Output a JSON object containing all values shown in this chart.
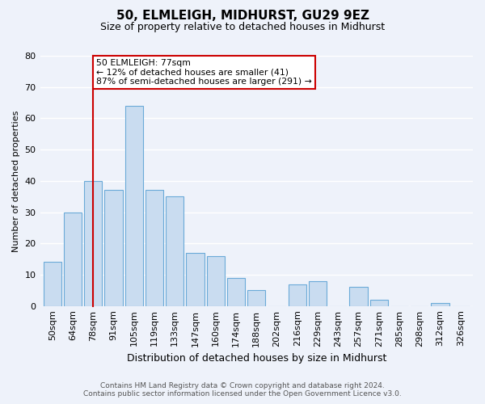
{
  "title": "50, ELMLEIGH, MIDHURST, GU29 9EZ",
  "subtitle": "Size of property relative to detached houses in Midhurst",
  "xlabel": "Distribution of detached houses by size in Midhurst",
  "ylabel": "Number of detached properties",
  "bar_labels": [
    "50sqm",
    "64sqm",
    "78sqm",
    "91sqm",
    "105sqm",
    "119sqm",
    "133sqm",
    "147sqm",
    "160sqm",
    "174sqm",
    "188sqm",
    "202sqm",
    "216sqm",
    "229sqm",
    "243sqm",
    "257sqm",
    "271sqm",
    "285sqm",
    "298sqm",
    "312sqm",
    "326sqm"
  ],
  "bar_heights": [
    14,
    30,
    40,
    37,
    64,
    37,
    35,
    17,
    16,
    9,
    5,
    0,
    7,
    8,
    0,
    6,
    2,
    0,
    0,
    1,
    0
  ],
  "bar_color": "#c9dcf0",
  "bar_edge_color": "#6baad8",
  "vline_x_index": 2,
  "vline_color": "#cc0000",
  "annotation_line1": "50 ELMLEIGH: 77sqm",
  "annotation_line2": "← 12% of detached houses are smaller (41)",
  "annotation_line3": "87% of semi-detached houses are larger (291) →",
  "annotation_box_color": "#ffffff",
  "annotation_box_edge_color": "#cc0000",
  "ylim": [
    0,
    80
  ],
  "yticks": [
    0,
    10,
    20,
    30,
    40,
    50,
    60,
    70,
    80
  ],
  "footnote1": "Contains HM Land Registry data © Crown copyright and database right 2024.",
  "footnote2": "Contains public sector information licensed under the Open Government Licence v3.0.",
  "bg_color": "#eef2fa",
  "grid_color": "#ffffff",
  "title_fontsize": 11,
  "subtitle_fontsize": 9
}
